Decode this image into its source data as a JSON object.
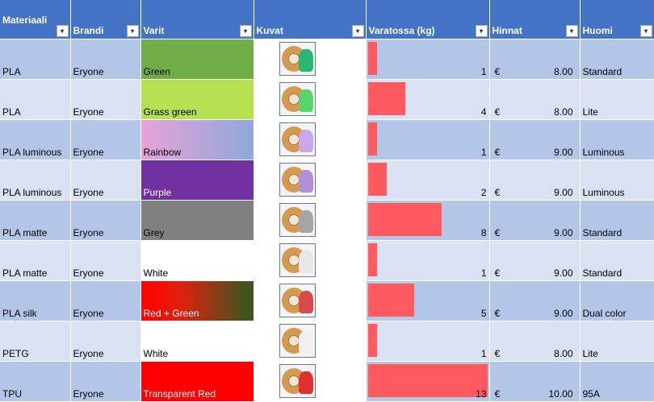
{
  "headers": {
    "materiaali": "Materiaali",
    "brandi": "Brandi",
    "varit": "Varit",
    "kuvat": "Kuvat",
    "varatossa": "Varatossa (kg)",
    "hinnat": "Hinnat",
    "huomi": "Huomi"
  },
  "filter_icons": {
    "dropdown": "▾",
    "filtered": "▾"
  },
  "rows": [
    {
      "material": "PLA",
      "brand": "Eryone",
      "color_name": "Green",
      "swatch": "#70ad47",
      "spool_model": "#2bb673",
      "stock": 1,
      "currency": "€",
      "price": "8.00",
      "note": "Standard"
    },
    {
      "material": "PLA",
      "brand": "Eryone",
      "color_name": "Grass green",
      "swatch": "#b5e051",
      "spool_model": "#5ad36e",
      "stock": 4,
      "currency": "€",
      "price": "8.00",
      "note": " Lite"
    },
    {
      "material": "PLA luminous",
      "brand": "Eryone",
      "color_name": "Rainbow",
      "swatch": "linear-gradient(90deg,#e8a2d6,#8ea8dc)",
      "spool_model": "#c9a8e8",
      "stock": 1,
      "currency": "€",
      "price": "9.00",
      "note": "Luminous"
    },
    {
      "material": "PLA luminous",
      "brand": "Eryone",
      "color_name": "Purple",
      "swatch": "#7030a0",
      "spool_model": "#b38fd8",
      "stock": 2,
      "currency": "€",
      "price": "9.00",
      "note": " Luminous"
    },
    {
      "material": "PLA matte",
      "brand": "Eryone",
      "color_name": "Grey",
      "swatch": "#808080",
      "spool_model": "#a5a5a5",
      "stock": 8,
      "currency": "€",
      "price": "9.00",
      "note": "Standard"
    },
    {
      "material": "PLA matte",
      "brand": "Eryone",
      "color_name": "White",
      "swatch": "#ffffff",
      "spool_model": "#e8e8e8",
      "stock": 1,
      "currency": "€",
      "price": "9.00",
      "note": " Standard"
    },
    {
      "material": "PLA silk",
      "brand": "Eryone",
      "color_name": "Red + Green",
      "swatch": "linear-gradient(90deg,#ff0000,#e02010 35%,#2f5a20)",
      "spool_model": "#d94a4a",
      "stock": 5,
      "currency": "€",
      "price": "9.00",
      "note": " Dual color"
    },
    {
      "material": "PETG",
      "brand": "Eryone",
      "color_name": "White",
      "swatch": "#ffffff",
      "spool_model": "#f0f0f0",
      "stock": 1,
      "currency": "€",
      "price": "8.00",
      "note": " Lite"
    },
    {
      "material": "TPU",
      "brand": "Eryone",
      "color_name": "Transparent Red",
      "swatch": "#ff0000",
      "spool_model": "#e03030",
      "stock": 13,
      "currency": "€",
      "price": "10.00",
      "note": " 95A"
    }
  ],
  "stock_max": 13,
  "colors": {
    "header": "#4472c4",
    "band_dark": "#b4c6e7",
    "band_light": "#d9e1f2",
    "databar": "#ff5a5f"
  }
}
